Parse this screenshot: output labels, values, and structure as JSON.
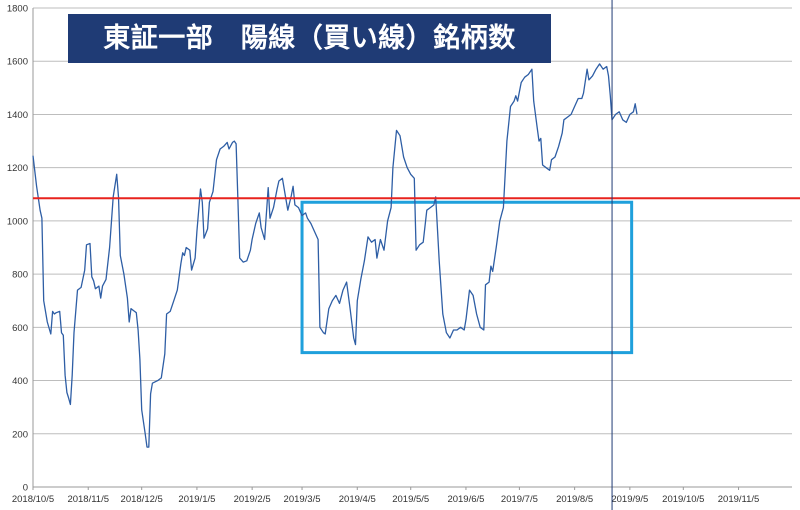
{
  "chart_data": {
    "type": "line",
    "title": "東証一部　陽線（買い線）銘柄数",
    "xlabel": "",
    "ylabel": "",
    "ylim": [
      0,
      1800
    ],
    "yticks": [
      0,
      200,
      400,
      600,
      800,
      1000,
      1200,
      1400,
      1600,
      1800
    ],
    "xlim": [
      "2018-10-05",
      "2019-12-05"
    ],
    "xticks": [
      "2018/10/5",
      "2018/11/5",
      "2018/12/5",
      "2019/1/5",
      "2019/2/5",
      "2019/3/5",
      "2019/4/5",
      "2019/5/5",
      "2019/6/5",
      "2019/7/5",
      "2019/8/5",
      "2019/9/5",
      "2019/10/5",
      "2019/11/5"
    ],
    "grid": "horizontal",
    "colors": {
      "line": "#2e5ea5",
      "reference": "#e8231e",
      "highlight": "#1fa0dc",
      "vline": "#1f3b75",
      "title_bg": "#1f3b75",
      "title_fg": "#ffffff"
    },
    "reference_line": {
      "y": 1085,
      "color": "#e8231e"
    },
    "vertical_line": {
      "x": "2019-08-26"
    },
    "highlight_box": {
      "x": [
        "2019-03-05",
        "2019-09-06"
      ],
      "y": [
        505,
        1070
      ],
      "color": "#1fa0dc"
    },
    "series": [
      {
        "values": [
          [
            "2018-10-05",
            1245
          ],
          [
            "2018-10-07",
            1130
          ],
          [
            "2018-10-09",
            1040
          ],
          [
            "2018-10-10",
            1010
          ],
          [
            "2018-10-11",
            700
          ],
          [
            "2018-10-13",
            620
          ],
          [
            "2018-10-15",
            575
          ],
          [
            "2018-10-16",
            660
          ],
          [
            "2018-10-17",
            650
          ],
          [
            "2018-10-18",
            655
          ],
          [
            "2018-10-20",
            660
          ],
          [
            "2018-10-21",
            580
          ],
          [
            "2018-10-22",
            570
          ],
          [
            "2018-10-23",
            420
          ],
          [
            "2018-10-24",
            355
          ],
          [
            "2018-10-25",
            335
          ],
          [
            "2018-10-26",
            310
          ],
          [
            "2018-10-27",
            420
          ],
          [
            "2018-10-28",
            580
          ],
          [
            "2018-10-30",
            740
          ],
          [
            "2018-11-01",
            750
          ],
          [
            "2018-11-03",
            815
          ],
          [
            "2018-11-04",
            910
          ],
          [
            "2018-11-06",
            915
          ],
          [
            "2018-11-07",
            790
          ],
          [
            "2018-11-08",
            775
          ],
          [
            "2018-11-09",
            745
          ],
          [
            "2018-11-11",
            755
          ],
          [
            "2018-11-12",
            710
          ],
          [
            "2018-11-13",
            755
          ],
          [
            "2018-11-15",
            780
          ],
          [
            "2018-11-17",
            900
          ],
          [
            "2018-11-19",
            1090
          ],
          [
            "2018-11-21",
            1175
          ],
          [
            "2018-11-22",
            1090
          ],
          [
            "2018-11-23",
            870
          ],
          [
            "2018-11-25",
            800
          ],
          [
            "2018-11-27",
            710
          ],
          [
            "2018-11-28",
            620
          ],
          [
            "2018-11-29",
            670
          ],
          [
            "2018-12-01",
            660
          ],
          [
            "2018-12-02",
            655
          ],
          [
            "2018-12-03",
            590
          ],
          [
            "2018-12-04",
            480
          ],
          [
            "2018-12-05",
            290
          ],
          [
            "2018-12-07",
            200
          ],
          [
            "2018-12-08",
            150
          ],
          [
            "2018-12-09",
            150
          ],
          [
            "2018-12-10",
            350
          ],
          [
            "2018-12-11",
            390
          ],
          [
            "2018-12-14",
            400
          ],
          [
            "2018-12-16",
            410
          ],
          [
            "2018-12-18",
            500
          ],
          [
            "2018-12-19",
            650
          ],
          [
            "2018-12-21",
            660
          ],
          [
            "2018-12-23",
            700
          ],
          [
            "2018-12-25",
            740
          ],
          [
            "2018-12-27",
            840
          ],
          [
            "2018-12-28",
            880
          ],
          [
            "2018-12-29",
            870
          ],
          [
            "2018-12-30",
            900
          ],
          [
            "2019-01-01",
            890
          ],
          [
            "2019-01-02",
            815
          ],
          [
            "2019-01-04",
            860
          ],
          [
            "2019-01-05",
            960
          ],
          [
            "2019-01-07",
            1120
          ],
          [
            "2019-01-08",
            1070
          ],
          [
            "2019-01-09",
            935
          ],
          [
            "2019-01-11",
            970
          ],
          [
            "2019-01-12",
            1070
          ],
          [
            "2019-01-14",
            1110
          ],
          [
            "2019-01-16",
            1230
          ],
          [
            "2019-01-18",
            1270
          ],
          [
            "2019-01-20",
            1280
          ],
          [
            "2019-01-22",
            1295
          ],
          [
            "2019-01-23",
            1270
          ],
          [
            "2019-01-25",
            1295
          ],
          [
            "2019-01-26",
            1300
          ],
          [
            "2019-01-27",
            1290
          ],
          [
            "2019-01-28",
            1080
          ],
          [
            "2019-01-29",
            860
          ],
          [
            "2019-01-31",
            845
          ],
          [
            "2019-02-02",
            850
          ],
          [
            "2019-02-04",
            890
          ],
          [
            "2019-02-05",
            930
          ],
          [
            "2019-02-07",
            990
          ],
          [
            "2019-02-09",
            1030
          ],
          [
            "2019-02-10",
            975
          ],
          [
            "2019-02-12",
            930
          ],
          [
            "2019-02-14",
            1125
          ],
          [
            "2019-02-15",
            1010
          ],
          [
            "2019-02-17",
            1050
          ],
          [
            "2019-02-19",
            1120
          ],
          [
            "2019-02-20",
            1150
          ],
          [
            "2019-02-22",
            1160
          ],
          [
            "2019-02-24",
            1080
          ],
          [
            "2019-02-25",
            1040
          ],
          [
            "2019-02-27",
            1095
          ],
          [
            "2019-02-28",
            1130
          ],
          [
            "2019-03-01",
            1060
          ],
          [
            "2019-03-03",
            1050
          ],
          [
            "2019-03-05",
            1020
          ],
          [
            "2019-03-07",
            1030
          ],
          [
            "2019-03-08",
            1010
          ],
          [
            "2019-03-10",
            990
          ],
          [
            "2019-03-12",
            960
          ],
          [
            "2019-03-14",
            930
          ],
          [
            "2019-03-15",
            600
          ],
          [
            "2019-03-17",
            580
          ],
          [
            "2019-03-18",
            575
          ],
          [
            "2019-03-20",
            670
          ],
          [
            "2019-03-22",
            700
          ],
          [
            "2019-03-24",
            720
          ],
          [
            "2019-03-26",
            690
          ],
          [
            "2019-03-28",
            740
          ],
          [
            "2019-03-30",
            770
          ],
          [
            "2019-04-01",
            670
          ],
          [
            "2019-04-03",
            560
          ],
          [
            "2019-04-04",
            535
          ],
          [
            "2019-04-05",
            700
          ],
          [
            "2019-04-07",
            780
          ],
          [
            "2019-04-09",
            850
          ],
          [
            "2019-04-11",
            940
          ],
          [
            "2019-04-13",
            920
          ],
          [
            "2019-04-15",
            930
          ],
          [
            "2019-04-16",
            860
          ],
          [
            "2019-04-18",
            930
          ],
          [
            "2019-04-20",
            890
          ],
          [
            "2019-04-22",
            1000
          ],
          [
            "2019-04-24",
            1050
          ],
          [
            "2019-04-25",
            1200
          ],
          [
            "2019-04-27",
            1340
          ],
          [
            "2019-04-29",
            1320
          ],
          [
            "2019-05-01",
            1240
          ],
          [
            "2019-05-03",
            1200
          ],
          [
            "2019-05-05",
            1175
          ],
          [
            "2019-05-07",
            1160
          ],
          [
            "2019-05-08",
            890
          ],
          [
            "2019-05-10",
            910
          ],
          [
            "2019-05-12",
            920
          ],
          [
            "2019-05-14",
            1040
          ],
          [
            "2019-05-16",
            1050
          ],
          [
            "2019-05-18",
            1060
          ],
          [
            "2019-05-19",
            1090
          ],
          [
            "2019-05-21",
            850
          ],
          [
            "2019-05-23",
            650
          ],
          [
            "2019-05-25",
            580
          ],
          [
            "2019-05-27",
            560
          ],
          [
            "2019-05-29",
            590
          ],
          [
            "2019-05-31",
            590
          ],
          [
            "2019-06-02",
            600
          ],
          [
            "2019-06-04",
            590
          ],
          [
            "2019-06-05",
            630
          ],
          [
            "2019-06-07",
            740
          ],
          [
            "2019-06-09",
            720
          ],
          [
            "2019-06-11",
            650
          ],
          [
            "2019-06-13",
            600
          ],
          [
            "2019-06-15",
            590
          ],
          [
            "2019-06-16",
            760
          ],
          [
            "2019-06-18",
            770
          ],
          [
            "2019-06-19",
            830
          ],
          [
            "2019-06-20",
            810
          ],
          [
            "2019-06-22",
            900
          ],
          [
            "2019-06-24",
            1000
          ],
          [
            "2019-06-26",
            1050
          ],
          [
            "2019-06-28",
            1300
          ],
          [
            "2019-06-30",
            1430
          ],
          [
            "2019-07-02",
            1450
          ],
          [
            "2019-07-03",
            1470
          ],
          [
            "2019-07-04",
            1450
          ],
          [
            "2019-07-06",
            1520
          ],
          [
            "2019-07-08",
            1540
          ],
          [
            "2019-07-10",
            1550
          ],
          [
            "2019-07-12",
            1570
          ],
          [
            "2019-07-13",
            1450
          ],
          [
            "2019-07-15",
            1350
          ],
          [
            "2019-07-16",
            1300
          ],
          [
            "2019-07-17",
            1310
          ],
          [
            "2019-07-18",
            1210
          ],
          [
            "2019-07-20",
            1200
          ],
          [
            "2019-07-22",
            1190
          ],
          [
            "2019-07-23",
            1230
          ],
          [
            "2019-07-25",
            1240
          ],
          [
            "2019-07-27",
            1280
          ],
          [
            "2019-07-29",
            1330
          ],
          [
            "2019-07-30",
            1380
          ],
          [
            "2019-08-01",
            1390
          ],
          [
            "2019-08-03",
            1400
          ],
          [
            "2019-08-05",
            1430
          ],
          [
            "2019-08-07",
            1460
          ],
          [
            "2019-08-09",
            1460
          ],
          [
            "2019-08-10",
            1480
          ],
          [
            "2019-08-12",
            1570
          ],
          [
            "2019-08-13",
            1530
          ],
          [
            "2019-08-15",
            1545
          ],
          [
            "2019-08-17",
            1570
          ],
          [
            "2019-08-19",
            1590
          ],
          [
            "2019-08-21",
            1570
          ],
          [
            "2019-08-23",
            1580
          ],
          [
            "2019-08-24",
            1545
          ],
          [
            "2019-08-25",
            1470
          ],
          [
            "2019-08-26",
            1380
          ],
          [
            "2019-08-28",
            1400
          ],
          [
            "2019-08-30",
            1410
          ],
          [
            "2019-09-01",
            1380
          ],
          [
            "2019-09-03",
            1370
          ],
          [
            "2019-09-05",
            1400
          ],
          [
            "2019-09-07",
            1410
          ],
          [
            "2019-09-08",
            1440
          ],
          [
            "2019-09-09",
            1400
          ]
        ]
      }
    ],
    "x_series_note_removed": true
  }
}
